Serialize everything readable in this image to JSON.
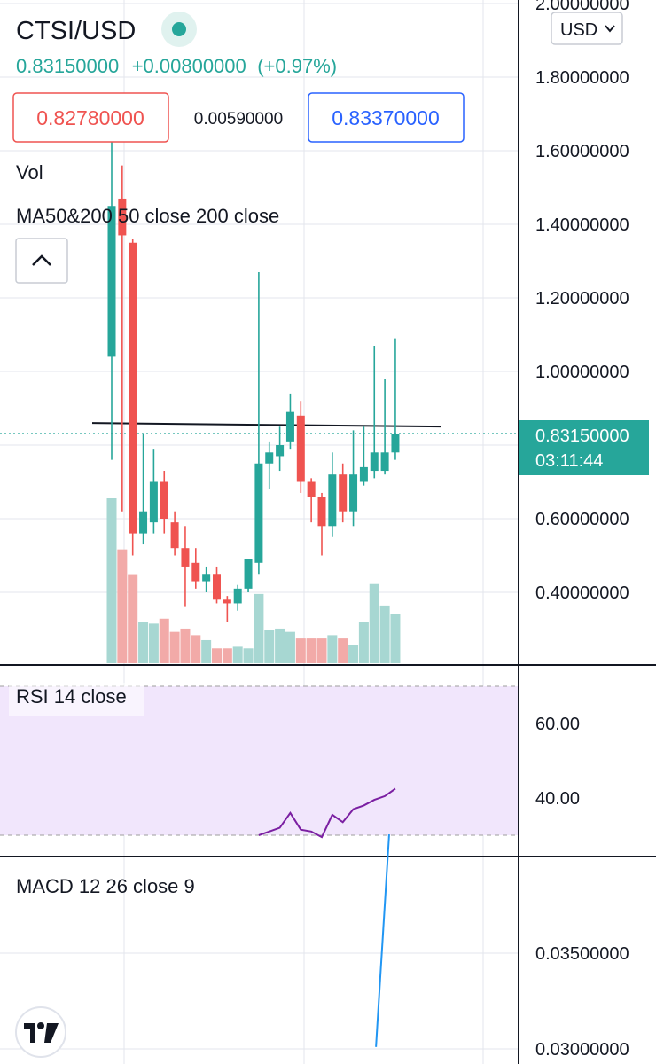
{
  "header": {
    "symbol": "CTSI/USD",
    "price": "0.83150000",
    "change": "+0.00800000",
    "change_pct": "(+0.97%)",
    "bid": "0.82780000",
    "spread": "0.00590000",
    "ask": "0.83370000",
    "currency": "USD",
    "collapse_icon": "chevron-up-icon"
  },
  "indicators": {
    "vol_label": "Vol",
    "ma_label": "MA50&200 50 close 200 close",
    "rsi_label": "RSI 14 close",
    "macd_label": "MACD 12 26 close 9"
  },
  "last_price": {
    "value": "0.83150000",
    "countdown": "03:11:44"
  },
  "colors": {
    "up": "#26a69a",
    "down": "#ef5350",
    "up_volume": "#a7d7d2",
    "down_volume": "#f2aaa8",
    "rsi_band": "#f1e6fc",
    "rsi_line": "#7b1fa2",
    "macd_line": "#2196f3"
  },
  "chart_data": [
    {
      "type": "candlestick",
      "title": "CTSI/USD",
      "yticks": [
        "2.00000000",
        "1.80000000",
        "1.60000000",
        "1.40000000",
        "1.20000000",
        "1.00000000",
        "0.60000000",
        "0.40000000"
      ],
      "ytick_values": [
        2.0,
        1.8,
        1.6,
        1.4,
        1.2,
        1.0,
        0.6,
        0.4
      ],
      "ylim": [
        0.2,
        2.0
      ],
      "candles": [
        {
          "o": 1.04,
          "h": 1.63,
          "l": 0.76,
          "c": 1.45
        },
        {
          "o": 1.47,
          "h": 1.56,
          "l": 0.62,
          "c": 1.37
        },
        {
          "o": 1.35,
          "h": 1.36,
          "l": 0.5,
          "c": 0.56
        },
        {
          "o": 0.56,
          "h": 0.83,
          "l": 0.53,
          "c": 0.62
        },
        {
          "o": 0.59,
          "h": 0.79,
          "l": 0.56,
          "c": 0.7
        },
        {
          "o": 0.7,
          "h": 0.73,
          "l": 0.56,
          "c": 0.6
        },
        {
          "o": 0.59,
          "h": 0.62,
          "l": 0.5,
          "c": 0.52
        },
        {
          "o": 0.52,
          "h": 0.58,
          "l": 0.36,
          "c": 0.47
        },
        {
          "o": 0.48,
          "h": 0.52,
          "l": 0.41,
          "c": 0.43
        },
        {
          "o": 0.43,
          "h": 0.47,
          "l": 0.4,
          "c": 0.45
        },
        {
          "o": 0.45,
          "h": 0.47,
          "l": 0.37,
          "c": 0.38
        },
        {
          "o": 0.38,
          "h": 0.39,
          "l": 0.32,
          "c": 0.37
        },
        {
          "o": 0.37,
          "h": 0.42,
          "l": 0.35,
          "c": 0.41
        },
        {
          "o": 0.41,
          "h": 0.49,
          "l": 0.4,
          "c": 0.49
        },
        {
          "o": 0.48,
          "h": 1.27,
          "l": 0.45,
          "c": 0.75
        },
        {
          "o": 0.75,
          "h": 0.81,
          "l": 0.68,
          "c": 0.78
        },
        {
          "o": 0.77,
          "h": 0.85,
          "l": 0.73,
          "c": 0.8
        },
        {
          "o": 0.81,
          "h": 0.94,
          "l": 0.79,
          "c": 0.89
        },
        {
          "o": 0.88,
          "h": 0.92,
          "l": 0.67,
          "c": 0.7
        },
        {
          "o": 0.7,
          "h": 0.71,
          "l": 0.59,
          "c": 0.66
        },
        {
          "o": 0.66,
          "h": 0.67,
          "l": 0.5,
          "c": 0.58
        },
        {
          "o": 0.58,
          "h": 0.78,
          "l": 0.55,
          "c": 0.72
        },
        {
          "o": 0.72,
          "h": 0.75,
          "l": 0.59,
          "c": 0.62
        },
        {
          "o": 0.62,
          "h": 0.84,
          "l": 0.58,
          "c": 0.72
        },
        {
          "o": 0.7,
          "h": 0.85,
          "l": 0.69,
          "c": 0.74
        },
        {
          "o": 0.73,
          "h": 1.07,
          "l": 0.71,
          "c": 0.78
        },
        {
          "o": 0.73,
          "h": 0.98,
          "l": 0.72,
          "c": 0.78
        },
        {
          "o": 0.78,
          "h": 1.09,
          "l": 0.76,
          "c": 0.83
        }
      ],
      "volume_relative": [
        1.0,
        0.69,
        0.54,
        0.25,
        0.24,
        0.27,
        0.19,
        0.21,
        0.17,
        0.14,
        0.09,
        0.09,
        0.1,
        0.09,
        0.42,
        0.2,
        0.21,
        0.19,
        0.15,
        0.15,
        0.15,
        0.17,
        0.15,
        0.11,
        0.25,
        0.48,
        0.35,
        0.3
      ],
      "horizontal_line": 0.855,
      "last_price": 0.8315
    },
    {
      "type": "line",
      "title": "RSI 14 close",
      "yticks": [
        "60.00",
        "40.00"
      ],
      "ytick_values": [
        60,
        40
      ],
      "band": [
        30,
        70
      ],
      "ylim": [
        26,
        74
      ],
      "series": [
        {
          "values": [
            null,
            null,
            null,
            null,
            null,
            null,
            null,
            null,
            null,
            null,
            null,
            null,
            null,
            null,
            30.0,
            31.0,
            32.0,
            36.0,
            31.5,
            31.0,
            29.5,
            35.5,
            33.5,
            37.0,
            38.0,
            39.5,
            40.5,
            42.5
          ]
        }
      ]
    },
    {
      "type": "line",
      "title": "MACD 12 26 close 9",
      "yticks": [
        "0.03500000",
        "0.03000000"
      ],
      "ytick_values": [
        0.035,
        0.03
      ],
      "series": [
        {
          "values": [
            null,
            null,
            null,
            null,
            null,
            null,
            null,
            null,
            null,
            null,
            null,
            null,
            null,
            null,
            null,
            null,
            null,
            null,
            null,
            null,
            null,
            null,
            null,
            null,
            null,
            null,
            0.0301,
            0.0412
          ]
        }
      ]
    }
  ]
}
